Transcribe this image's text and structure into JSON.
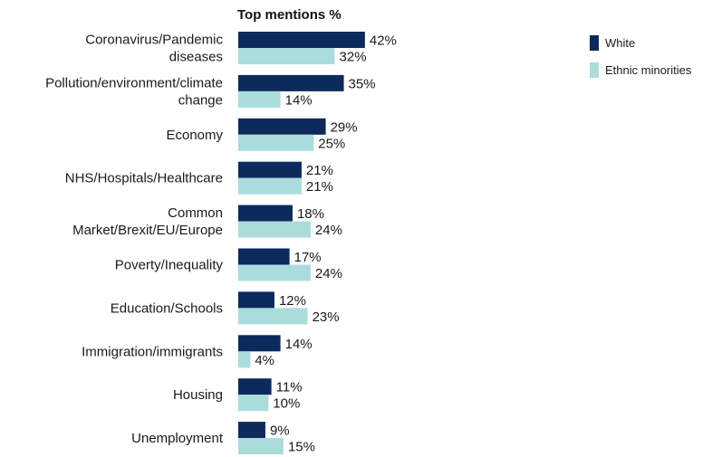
{
  "chart_data": {
    "type": "bar",
    "orientation": "horizontal",
    "title": "Top mentions %",
    "categories": [
      [
        "Coronavirus/Pandemic",
        "diseases"
      ],
      [
        "Pollution/environment/climate",
        "change"
      ],
      [
        "Economy"
      ],
      [
        "NHS/Hospitals/Healthcare"
      ],
      [
        "Common",
        "Market/Brexit/EU/Europe"
      ],
      [
        "Poverty/Inequality"
      ],
      [
        "Education/Schools"
      ],
      [
        "Immigration/immigrants"
      ],
      [
        "Housing"
      ],
      [
        "Unemployment"
      ]
    ],
    "series": [
      {
        "name": "White",
        "color": "#0d2a5c",
        "values": [
          42,
          35,
          29,
          21,
          18,
          17,
          12,
          14,
          11,
          9
        ],
        "labels": [
          "42%",
          "35%",
          "29%",
          "21%",
          "18%",
          "17%",
          "12%",
          "14%",
          "11%",
          "9%"
        ]
      },
      {
        "name": "Ethnic minorities",
        "color": "#aadcdc",
        "values": [
          32,
          14,
          25,
          21,
          24,
          24,
          23,
          4,
          10,
          15
        ],
        "labels": [
          "32%",
          "14%",
          "25%",
          "21%",
          "24%",
          "24%",
          "23%",
          "4%",
          "10%",
          "15%"
        ]
      }
    ],
    "xlim": [
      0,
      45
    ],
    "grid": false,
    "legend_position": "top-right"
  }
}
